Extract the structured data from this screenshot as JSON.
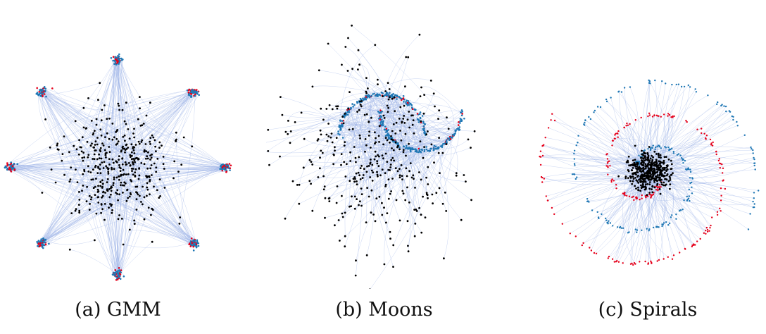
{
  "figure": {
    "panels": [
      {
        "key": "gmm",
        "caption": "(a) GMM"
      },
      {
        "key": "moons",
        "caption": "(b) Moons"
      },
      {
        "key": "spirals",
        "caption": "(c) Spirals"
      }
    ]
  },
  "colors": {
    "source_points": "#000000",
    "target_points_a": "#1f77b4",
    "target_points_b": "#e6001a",
    "trajectories": "#9fb5e8",
    "background": "#ffffff"
  }
}
